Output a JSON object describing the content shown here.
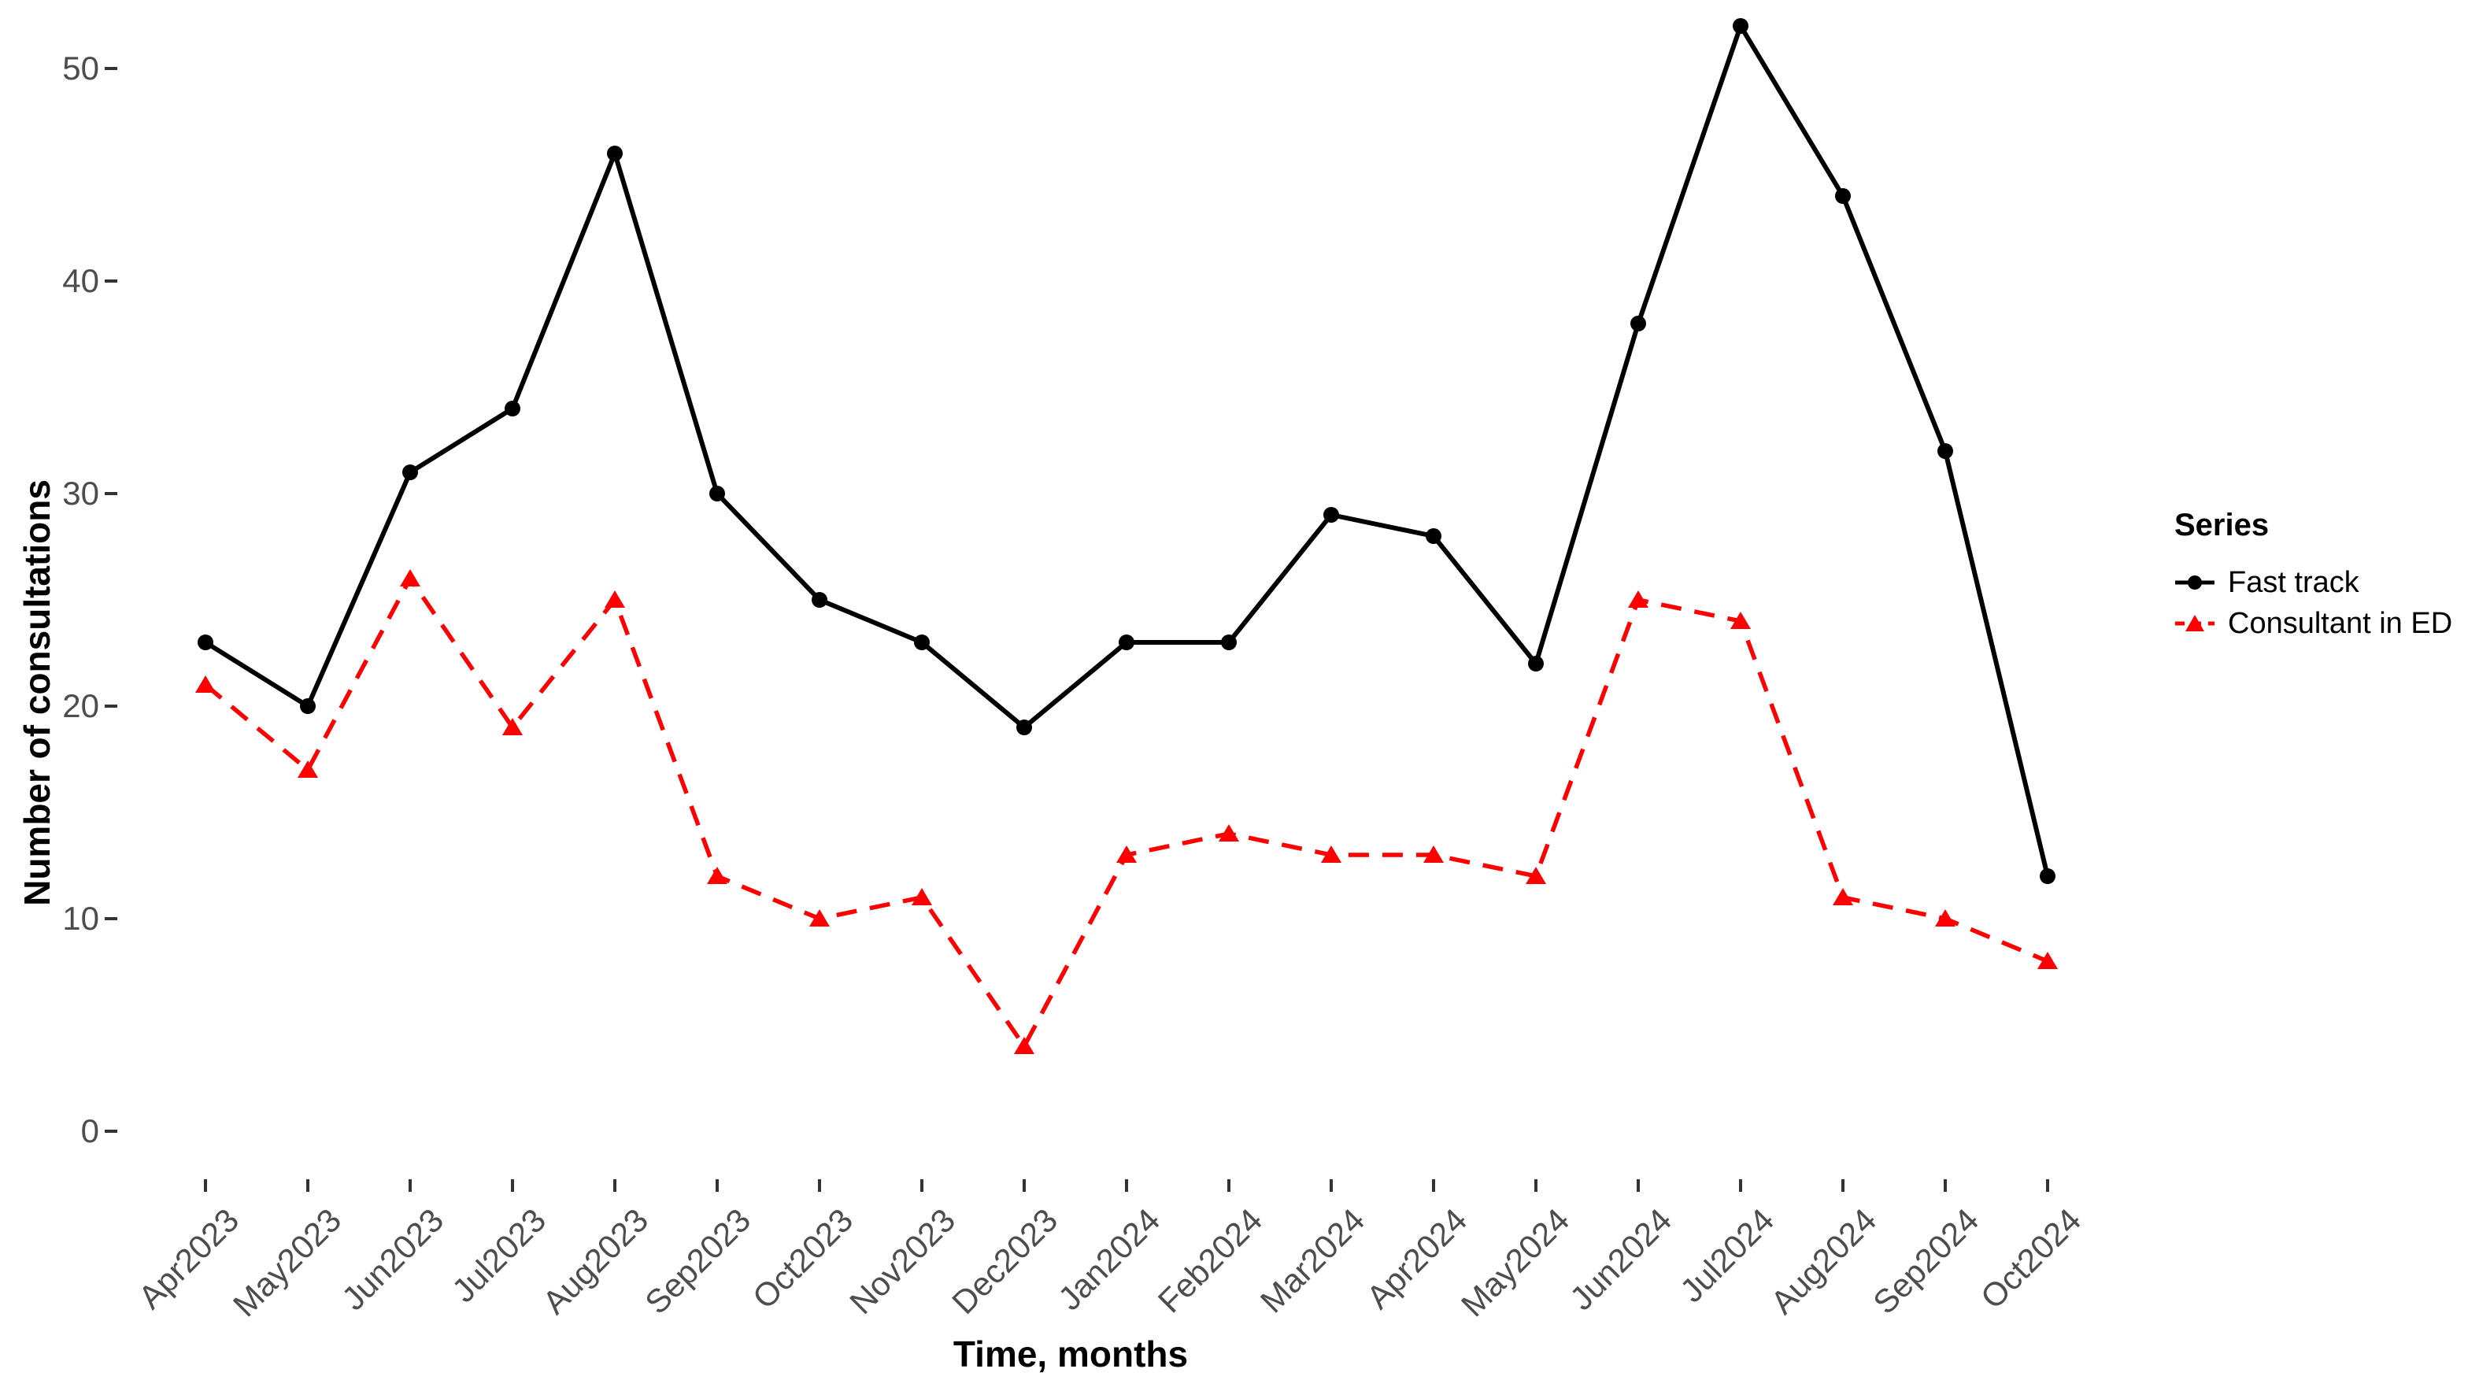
{
  "chart_data": {
    "type": "line",
    "title": "",
    "xlabel": "Time, months",
    "ylabel": "Number of consultations",
    "categories": [
      "Apr2023",
      "May2023",
      "Jun2023",
      "Jul2023",
      "Aug2023",
      "Sep2023",
      "Oct2023",
      "Nov2023",
      "Dec2023",
      "Jan2024",
      "Feb2024",
      "Mar2024",
      "Apr2024",
      "May2024",
      "Jun2024",
      "Jul2024",
      "Aug2024",
      "Sep2024",
      "Oct2024"
    ],
    "yticks": [
      0,
      10,
      20,
      30,
      40,
      50
    ],
    "ylim": [
      0,
      52
    ],
    "grid": false,
    "legend": {
      "title": "Series",
      "position": "right"
    },
    "series": [
      {
        "name": "Fast track",
        "color": "#000000",
        "line": "solid",
        "marker": "circle",
        "values": [
          23,
          20,
          31,
          34,
          46,
          30,
          25,
          23,
          19,
          23,
          23,
          29,
          28,
          22,
          38,
          52,
          44,
          32,
          12
        ]
      },
      {
        "name": "Consultant in ED",
        "color": "#ff0000",
        "line": "dashed",
        "marker": "triangle-up",
        "values": [
          21,
          17,
          26,
          19,
          25,
          12,
          10,
          11,
          4,
          13,
          14,
          13,
          13,
          12,
          25,
          24,
          11,
          10,
          8
        ]
      }
    ],
    "colors": {
      "tick": "#333333",
      "tick_label": "#4d4d4d",
      "axis_title": "#000000"
    }
  }
}
